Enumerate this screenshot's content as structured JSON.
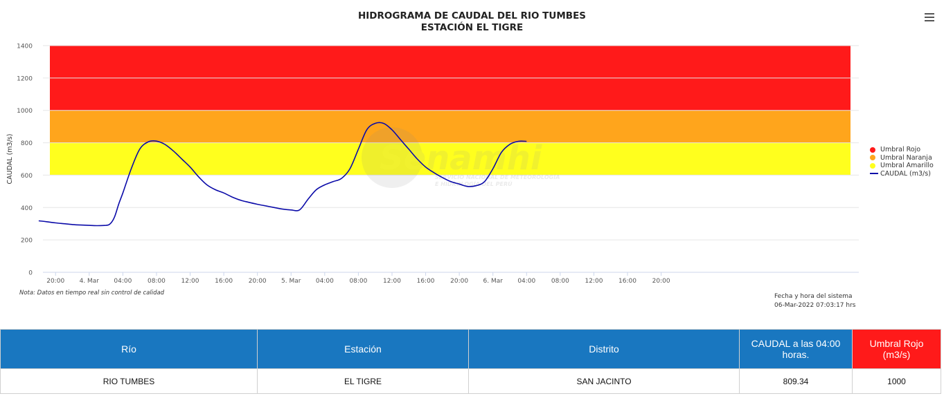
{
  "chart_data": {
    "type": "line",
    "title": "HIDROGRAMA DE CAUDAL DEL RIO TUMBES",
    "subtitle": "ESTACIÓN EL TIGRE",
    "ylabel": "CAUDAL (m3/s)",
    "xlabel": "",
    "ylim": [
      0,
      1400
    ],
    "y_ticks": [
      0,
      200,
      400,
      600,
      800,
      1000,
      1200,
      1400
    ],
    "x_range_hours": [
      -5.5,
      91.5
    ],
    "x_ticks": [
      {
        "h": -4,
        "label": "20:00"
      },
      {
        "h": 0,
        "label": "4. Mar"
      },
      {
        "h": 4,
        "label": "04:00"
      },
      {
        "h": 8,
        "label": "08:00"
      },
      {
        "h": 12,
        "label": "12:00"
      },
      {
        "h": 16,
        "label": "16:00"
      },
      {
        "h": 20,
        "label": "20:00"
      },
      {
        "h": 24,
        "label": "5. Mar"
      },
      {
        "h": 28,
        "label": "04:00"
      },
      {
        "h": 32,
        "label": "08:00"
      },
      {
        "h": 36,
        "label": "12:00"
      },
      {
        "h": 40,
        "label": "16:00"
      },
      {
        "h": 44,
        "label": "20:00"
      },
      {
        "h": 48,
        "label": "6. Mar"
      },
      {
        "h": 52,
        "label": "04:00"
      },
      {
        "h": 56,
        "label": "08:00"
      },
      {
        "h": 60,
        "label": "12:00"
      },
      {
        "h": 64,
        "label": "16:00"
      },
      {
        "h": 68,
        "label": "20:00"
      }
    ],
    "bands": [
      {
        "name": "Umbral Rojo",
        "from": 1000,
        "to": 1400,
        "color": "#ff1a1a"
      },
      {
        "name": "Umbral Naranja",
        "from": 800,
        "to": 1000,
        "color": "#ffa51c"
      },
      {
        "name": "Umbral Amarillo",
        "from": 600,
        "to": 800,
        "color": "#ffff1e"
      }
    ],
    "series": [
      {
        "name": "CAUDAL (m3/s)",
        "color": "#0a0aa8",
        "x": [
          -6,
          -5,
          -4,
          -3,
          -2,
          -1,
          0,
          1,
          2,
          2.5,
          3,
          3.5,
          4,
          5,
          6,
          7,
          8,
          9,
          10,
          11,
          12,
          13,
          14,
          15,
          16,
          17,
          18,
          19,
          20,
          21,
          22,
          23,
          24,
          25,
          26,
          27,
          28,
          29,
          30,
          31,
          32,
          33,
          34,
          35,
          36,
          37,
          38,
          39,
          40,
          41,
          42,
          43,
          44,
          45,
          46,
          47,
          48,
          49,
          50,
          51,
          52
        ],
        "y": [
          318,
          312,
          305,
          300,
          295,
          292,
          290,
          288,
          290,
          300,
          340,
          420,
          490,
          640,
          760,
          805,
          810,
          790,
          750,
          700,
          650,
          590,
          540,
          510,
          490,
          465,
          445,
          432,
          420,
          410,
          400,
          390,
          385,
          385,
          450,
          510,
          540,
          560,
          580,
          640,
          760,
          880,
          920,
          920,
          880,
          820,
          760,
          700,
          650,
          615,
          585,
          560,
          545,
          530,
          535,
          560,
          640,
          740,
          790,
          809,
          809
        ]
      }
    ],
    "legend_position": "right"
  },
  "note": "Nota: Datos en tiempo real sin control de calidad",
  "system": {
    "label": "Fecha y hora del sistema",
    "value": "06-Mar-2022 07:03:17 hrs"
  },
  "watermark": {
    "brand": "Senamhi",
    "line1": "SERVICIO NACIONAL DE METEOROLOGÍA",
    "line2": "E HIDROLOGÍA DEL PERÚ"
  },
  "table": {
    "headers": [
      "Río",
      "Estación",
      "Distrito",
      "CAUDAL a las 04:00 horas.",
      "Umbral Rojo (m3/s)"
    ],
    "row": [
      "RIO TUMBES",
      "EL TIGRE",
      "SAN JACINTO",
      "809.34",
      "1000"
    ]
  }
}
